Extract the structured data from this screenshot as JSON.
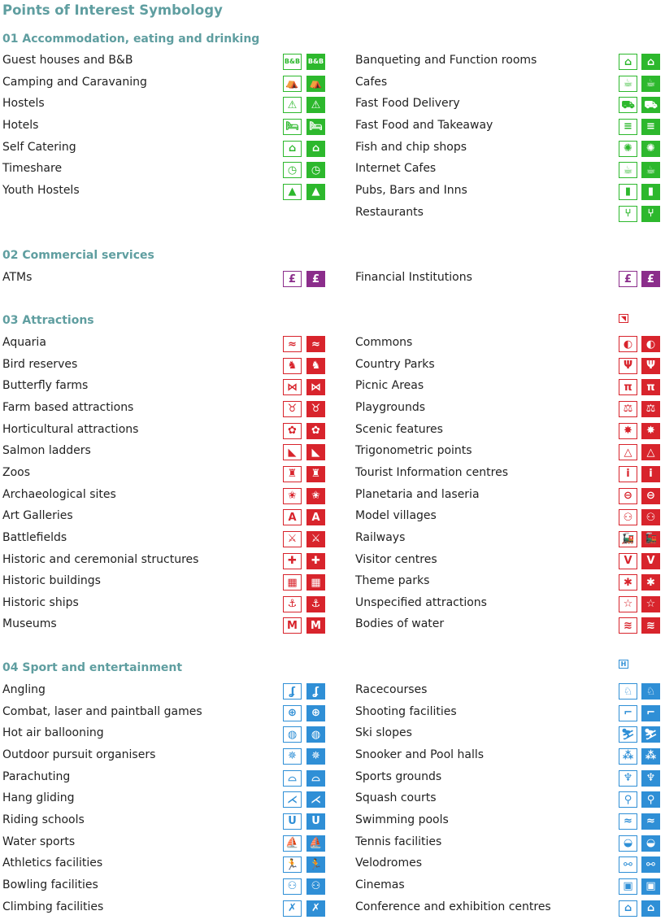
{
  "title": "Points of Interest Symbology",
  "colors": {
    "heading": "#5f9ea0",
    "accommodation": "#2db82d",
    "commercial": "#8b2d8b",
    "attractions": "#d8242c",
    "sport": "#2f8fd6"
  },
  "sections": [
    {
      "heading": "01 Accommodation, eating and drinking",
      "color_key": "accommodation",
      "left": [
        {
          "label": "Guest houses and B&B",
          "icon": "bnb-icon",
          "glyph": "B&B"
        },
        {
          "label": "Camping and Caravaning",
          "icon": "caravan-icon",
          "glyph": "⛺"
        },
        {
          "label": "Hostels",
          "icon": "hostel-icon",
          "glyph": "⚠"
        },
        {
          "label": "Hotels",
          "icon": "hotel-bed-icon",
          "glyph": "🛏"
        },
        {
          "label": "Self Catering",
          "icon": "house-icon",
          "glyph": "⌂"
        },
        {
          "label": "Timeshare",
          "icon": "timeshare-icon",
          "glyph": "◷"
        },
        {
          "label": "Youth Hostels",
          "icon": "triangle-icon",
          "glyph": "▲"
        }
      ],
      "right": [
        {
          "label": "Banqueting and Function rooms",
          "icon": "function-room-icon",
          "glyph": "⌂"
        },
        {
          "label": "Cafes",
          "icon": "cup-icon",
          "glyph": "☕"
        },
        {
          "label": "Fast Food Delivery",
          "icon": "delivery-van-icon",
          "glyph": "⛟"
        },
        {
          "label": "Fast Food and Takeaway",
          "icon": "burger-icon",
          "glyph": "≡"
        },
        {
          "label": "Fish and chip shops",
          "icon": "fish-icon",
          "glyph": "✺"
        },
        {
          "label": "Internet Cafes",
          "icon": "internet-cup-icon",
          "glyph": "☕"
        },
        {
          "label": "Pubs, Bars and Inns",
          "icon": "beer-mug-icon",
          "glyph": "▮"
        },
        {
          "label": "Restaurants",
          "icon": "cutlery-icon",
          "glyph": "⑂"
        }
      ]
    },
    {
      "heading": "02 Commercial services",
      "color_key": "commercial",
      "left": [
        {
          "label": "ATMs",
          "icon": "atm-icon",
          "glyph": "£"
        }
      ],
      "right": [
        {
          "label": "Financial Institutions",
          "icon": "bank-icon",
          "glyph": "£"
        }
      ]
    },
    {
      "heading": "03 Attractions",
      "color_key": "attractions",
      "tiny_icon": "small-arrow-icon",
      "tiny_glyph": "◥",
      "left": [
        {
          "label": "Aquaria",
          "icon": "fish-icon",
          "glyph": "≈"
        },
        {
          "label": "Bird reserves",
          "icon": "bird-icon",
          "glyph": "♞"
        },
        {
          "label": "Butterfly farms",
          "icon": "butterfly-icon",
          "glyph": "⋈"
        },
        {
          "label": "Farm based attractions",
          "icon": "cow-icon",
          "glyph": "♉"
        },
        {
          "label": "Horticultural attractions",
          "icon": "flower-icon",
          "glyph": "✿"
        },
        {
          "label": "Salmon ladders",
          "icon": "salmon-ladder-icon",
          "glyph": "◣"
        },
        {
          "label": "Zoos",
          "icon": "elephant-icon",
          "glyph": "♜"
        },
        {
          "label": "Archaeological sites",
          "icon": "star-burst-icon",
          "glyph": "✬"
        },
        {
          "label": "Art Galleries",
          "icon": "gallery-icon",
          "glyph": "A"
        },
        {
          "label": "Battlefields",
          "icon": "crossed-swords-icon",
          "glyph": "⚔"
        },
        {
          "label": "Historic and ceremonial structures",
          "icon": "cross-icon",
          "glyph": "✚"
        },
        {
          "label": "Historic buildings",
          "icon": "building-icon",
          "glyph": "▦"
        },
        {
          "label": "Historic ships",
          "icon": "anchor-icon",
          "glyph": "⚓"
        },
        {
          "label": "Museums",
          "icon": "museum-icon",
          "glyph": "M"
        }
      ],
      "right": [
        {
          "label": "Commons",
          "icon": "commons-icon",
          "glyph": "◐"
        },
        {
          "label": "Country Parks",
          "icon": "tree-icon",
          "glyph": "Ψ"
        },
        {
          "label": "Picnic Areas",
          "icon": "picnic-table-icon",
          "glyph": "π"
        },
        {
          "label": "Playgrounds",
          "icon": "seesaw-icon",
          "glyph": "⚖"
        },
        {
          "label": "Scenic features",
          "icon": "sunburst-icon",
          "glyph": "✸"
        },
        {
          "label": "Trigonometric points",
          "icon": "trig-triangle-icon",
          "glyph": "△"
        },
        {
          "label": "Tourist Information centres",
          "icon": "info-icon",
          "glyph": "i"
        },
        {
          "label": "Planetaria and laseria",
          "icon": "planet-icon",
          "glyph": "⊖"
        },
        {
          "label": "Model villages",
          "icon": "figures-icon",
          "glyph": "⚇"
        },
        {
          "label": "Railways",
          "icon": "train-icon",
          "glyph": "🚂"
        },
        {
          "label": "Visitor centres",
          "icon": "visitor-v-icon",
          "glyph": "V"
        },
        {
          "label": "Theme parks",
          "icon": "theme-park-icon",
          "glyph": "✱"
        },
        {
          "label": "Unspecified attractions",
          "icon": "star-icon",
          "glyph": "☆"
        },
        {
          "label": "Bodies of water",
          "icon": "water-waves-icon",
          "glyph": "≋"
        }
      ]
    },
    {
      "heading": "04 Sport and entertainment",
      "color_key": "sport",
      "tiny_icon": "h-box-icon",
      "tiny_glyph": "H",
      "left": [
        {
          "label": "Angling",
          "icon": "fishing-icon",
          "glyph": "ʆ"
        },
        {
          "label": "Combat, laser and paintball games",
          "icon": "crosshair-icon",
          "glyph": "⊕"
        },
        {
          "label": "Hot air ballooning",
          "icon": "balloon-icon",
          "glyph": "◍"
        },
        {
          "label": "Outdoor pursuit organisers",
          "icon": "compass-icon",
          "glyph": "✵"
        },
        {
          "label": "Parachuting",
          "icon": "parachute-icon",
          "glyph": "⌓"
        },
        {
          "label": "Hang gliding",
          "icon": "hang-glider-icon",
          "glyph": "⋌"
        },
        {
          "label": "Riding schools",
          "icon": "horseshoe-icon",
          "glyph": "U"
        },
        {
          "label": "Water sports",
          "icon": "sailboat-icon",
          "glyph": "⛵"
        },
        {
          "label": "Athletics facilities",
          "icon": "runner-icon",
          "glyph": "🏃"
        },
        {
          "label": "Bowling facilities",
          "icon": "bowling-icon",
          "glyph": "⚇"
        },
        {
          "label": "Climbing facilities",
          "icon": "climber-icon",
          "glyph": "✗"
        }
      ],
      "right": [
        {
          "label": "Racecourses",
          "icon": "horse-rider-icon",
          "glyph": "♘"
        },
        {
          "label": "Shooting facilities",
          "icon": "shooter-icon",
          "glyph": "⌐"
        },
        {
          "label": "Ski slopes",
          "icon": "skier-icon",
          "glyph": "⛷"
        },
        {
          "label": "Snooker and Pool halls",
          "icon": "pool-balls-icon",
          "glyph": "⁂"
        },
        {
          "label": "Sports grounds",
          "icon": "trophy-icon",
          "glyph": "♆"
        },
        {
          "label": "Squash courts",
          "icon": "racket-icon",
          "glyph": "⚲"
        },
        {
          "label": "Swimming pools",
          "icon": "swimmer-icon",
          "glyph": "≈"
        },
        {
          "label": "Tennis facilities",
          "icon": "tennis-ball-icon",
          "glyph": "◒"
        },
        {
          "label": "Velodromes",
          "icon": "bicycle-icon",
          "glyph": "⚯"
        },
        {
          "label": "Cinemas",
          "icon": "film-camera-icon",
          "glyph": "▣"
        },
        {
          "label": "Conference and exhibition centres",
          "icon": "conference-centre-icon",
          "glyph": "⌂"
        }
      ]
    }
  ]
}
